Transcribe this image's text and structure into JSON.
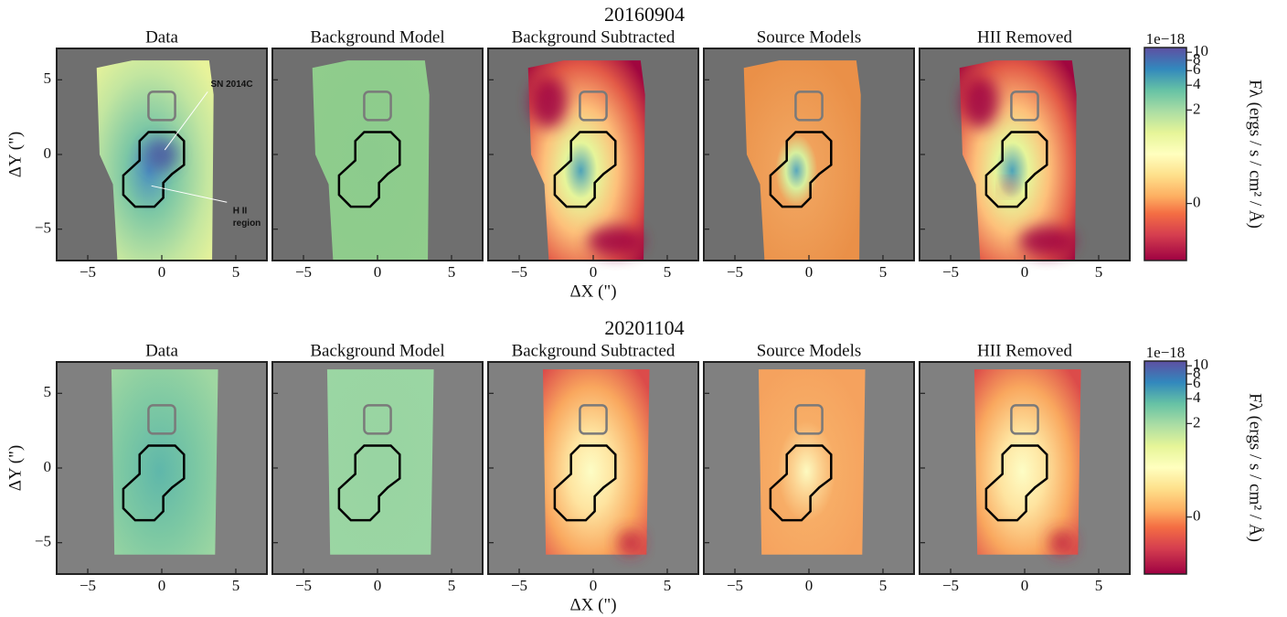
{
  "chart_data": [
    {
      "type": "image",
      "title": "20160904",
      "panel_titles": [
        "Data",
        "Background Model",
        "Background Subtracted",
        "Source Models",
        "HII Removed"
      ],
      "xlabel": "ΔX (\")",
      "ylabel": "ΔY (\")",
      "xlim": [
        -7.1,
        7.1
      ],
      "xticks": [
        {
          "value": -5,
          "label": "−5"
        },
        0,
        5
      ],
      "ylim": [
        -7.1,
        7.1
      ],
      "yticks": [
        {
          "value": -5,
          "label": "−5"
        },
        0,
        5
      ],
      "annotations": [
        "SN 2014C",
        "H II",
        "region"
      ],
      "colorbar": {
        "offset_label": "1e−18",
        "label": "Fλ (ergs / s / cm² / Å)",
        "clim": [
          -0.7,
          11.4
        ],
        "scale": "asinh",
        "linear_width": 0.3,
        "ticks": [
          0,
          2,
          4,
          6,
          8,
          10
        ]
      }
    },
    {
      "type": "image",
      "title": "20201104",
      "panel_titles": [
        "Data",
        "Background Model",
        "Background Subtracted",
        "Source Models",
        "HII Removed"
      ],
      "xlabel": "ΔX (\")",
      "ylabel": "ΔY (\")",
      "xlim": [
        -7.1,
        7.1
      ],
      "xticks": [
        {
          "value": -5,
          "label": "−5"
        },
        0,
        5
      ],
      "ylim": [
        -7.1,
        7.1
      ],
      "yticks": [
        {
          "value": -5,
          "label": "−5"
        },
        0,
        5
      ],
      "colorbar": {
        "offset_label": "1e−18",
        "label": "Fλ (ergs / s / cm² / Å)",
        "clim": [
          -0.7,
          11.4
        ],
        "scale": "asinh",
        "linear_width": 0.3,
        "ticks": [
          0,
          2,
          4,
          6,
          8,
          10
        ]
      }
    }
  ]
}
